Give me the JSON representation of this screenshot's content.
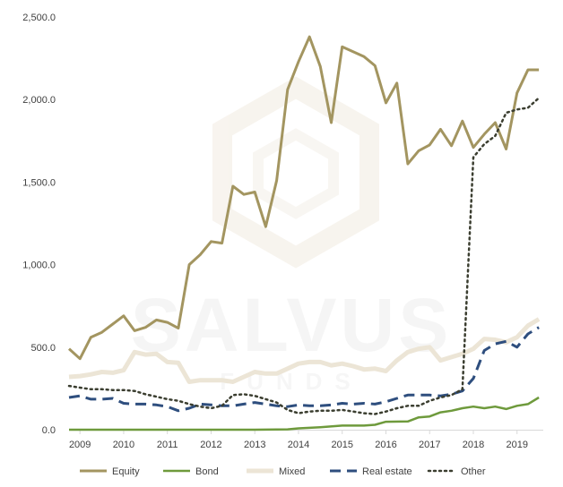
{
  "watermark": {
    "main": "SALVUS",
    "sub": "FUNDS"
  },
  "chart_data": {
    "type": "line",
    "x_ticks": [
      "2009",
      "2010",
      "2011",
      "2012",
      "2013",
      "2014",
      "2015",
      "2016",
      "2017",
      "2018",
      "2019"
    ],
    "y_ticks": [
      "0.0",
      "500.0",
      "1,000.0",
      "1,500.0",
      "2,000.0",
      "2,500.0"
    ],
    "ylim": [
      0,
      2500
    ],
    "xlim": [
      2008.75,
      2019.6
    ],
    "grid": false,
    "legend_position": "bottom",
    "series": [
      {
        "name": "Equity",
        "color": "#a39560",
        "dash": "solid",
        "width": 3,
        "x": [
          2008.75,
          2009.0,
          2009.25,
          2009.5,
          2009.75,
          2010.0,
          2010.25,
          2010.5,
          2010.75,
          2011.0,
          2011.25,
          2011.5,
          2011.75,
          2012.0,
          2012.25,
          2012.5,
          2012.75,
          2013.0,
          2013.25,
          2013.5,
          2013.75,
          2014.0,
          2014.25,
          2014.5,
          2014.75,
          2015.0,
          2015.25,
          2015.5,
          2015.75,
          2016.0,
          2016.25,
          2016.5,
          2016.75,
          2017.0,
          2017.25,
          2017.5,
          2017.75,
          2018.0,
          2018.25,
          2018.5,
          2018.75,
          2019.0,
          2019.25,
          2019.5
        ],
        "y": [
          490,
          430,
          560,
          590,
          640,
          690,
          600,
          620,
          665,
          650,
          615,
          1000,
          1060,
          1140,
          1130,
          1475,
          1425,
          1440,
          1230,
          1510,
          2060,
          2230,
          2380,
          2200,
          1860,
          2320,
          2290,
          2260,
          2205,
          1980,
          2100,
          1610,
          1690,
          1725,
          1820,
          1720,
          1870,
          1710,
          1790,
          1860,
          1700,
          2040,
          2180,
          2180
        ]
      },
      {
        "name": "Bond",
        "color": "#6e9a3c",
        "dash": "solid",
        "width": 2.5,
        "x": [
          2008.75,
          2010.0,
          2011.0,
          2012.0,
          2013.0,
          2013.75,
          2014.0,
          2014.5,
          2015.0,
          2015.5,
          2015.75,
          2016.0,
          2016.5,
          2016.75,
          2017.0,
          2017.25,
          2017.5,
          2017.75,
          2018.0,
          2018.25,
          2018.5,
          2018.75,
          2019.0,
          2019.25,
          2019.5
        ],
        "y": [
          0,
          0,
          0,
          0,
          0,
          2,
          8,
          15,
          25,
          25,
          30,
          48,
          50,
          75,
          80,
          105,
          115,
          130,
          140,
          130,
          140,
          125,
          145,
          155,
          195
        ]
      },
      {
        "name": "Mixed",
        "color": "#ece5d6",
        "dash": "solid",
        "width": 5,
        "x": [
          2008.75,
          2009.0,
          2009.25,
          2009.5,
          2009.75,
          2010.0,
          2010.25,
          2010.5,
          2010.75,
          2011.0,
          2011.25,
          2011.5,
          2011.75,
          2012.0,
          2012.25,
          2012.5,
          2012.75,
          2013.0,
          2013.25,
          2013.5,
          2013.75,
          2014.0,
          2014.25,
          2014.5,
          2014.75,
          2015.0,
          2015.25,
          2015.5,
          2015.75,
          2016.0,
          2016.25,
          2016.5,
          2016.75,
          2017.0,
          2017.25,
          2017.5,
          2017.75,
          2018.0,
          2018.25,
          2018.5,
          2018.75,
          2019.0,
          2019.25,
          2019.5
        ],
        "y": [
          320,
          325,
          335,
          350,
          345,
          360,
          470,
          455,
          460,
          410,
          405,
          290,
          300,
          300,
          300,
          290,
          320,
          350,
          340,
          340,
          370,
          400,
          410,
          410,
          390,
          400,
          385,
          365,
          370,
          355,
          420,
          470,
          490,
          500,
          420,
          440,
          460,
          490,
          550,
          545,
          530,
          560,
          630,
          670
        ]
      },
      {
        "name": "Real estate",
        "color": "#2e4e7e",
        "dash": "dash",
        "width": 3,
        "x": [
          2008.75,
          2009.0,
          2009.25,
          2009.5,
          2009.75,
          2010.0,
          2010.25,
          2010.5,
          2010.75,
          2011.0,
          2011.25,
          2011.5,
          2011.75,
          2012.0,
          2012.25,
          2012.5,
          2012.75,
          2013.0,
          2013.25,
          2013.5,
          2013.75,
          2014.0,
          2014.25,
          2014.5,
          2014.75,
          2015.0,
          2015.25,
          2015.5,
          2015.75,
          2016.0,
          2016.25,
          2016.5,
          2016.75,
          2017.0,
          2017.25,
          2017.5,
          2017.75,
          2018.0,
          2018.25,
          2018.5,
          2018.75,
          2019.0,
          2019.25,
          2019.5
        ],
        "y": [
          195,
          205,
          185,
          185,
          190,
          160,
          155,
          155,
          150,
          140,
          115,
          130,
          155,
          150,
          145,
          145,
          155,
          165,
          155,
          145,
          140,
          150,
          145,
          145,
          150,
          160,
          155,
          160,
          155,
          170,
          190,
          210,
          210,
          210,
          205,
          215,
          235,
          310,
          480,
          520,
          535,
          500,
          580,
          620
        ]
      },
      {
        "name": "Other",
        "color": "#3b3e30",
        "dash": "dot",
        "width": 2.5,
        "x": [
          2008.75,
          2009.0,
          2009.25,
          2009.5,
          2009.75,
          2010.0,
          2010.25,
          2010.5,
          2010.75,
          2011.0,
          2011.25,
          2011.5,
          2011.75,
          2012.0,
          2012.25,
          2012.5,
          2012.75,
          2013.0,
          2013.25,
          2013.5,
          2013.75,
          2014.0,
          2014.25,
          2014.5,
          2014.75,
          2015.0,
          2015.25,
          2015.5,
          2015.75,
          2016.0,
          2016.25,
          2016.5,
          2016.75,
          2017.0,
          2017.25,
          2017.5,
          2017.75,
          2018.0,
          2018.25,
          2018.5,
          2018.75,
          2019.0,
          2019.25,
          2019.5
        ],
        "y": [
          265,
          255,
          245,
          245,
          240,
          240,
          235,
          215,
          200,
          185,
          175,
          155,
          140,
          130,
          145,
          210,
          215,
          205,
          185,
          165,
          120,
          100,
          110,
          115,
          115,
          120,
          110,
          100,
          95,
          110,
          130,
          145,
          145,
          175,
          195,
          210,
          245,
          1650,
          1730,
          1780,
          1920,
          1940,
          1950,
          2010
        ]
      }
    ]
  }
}
